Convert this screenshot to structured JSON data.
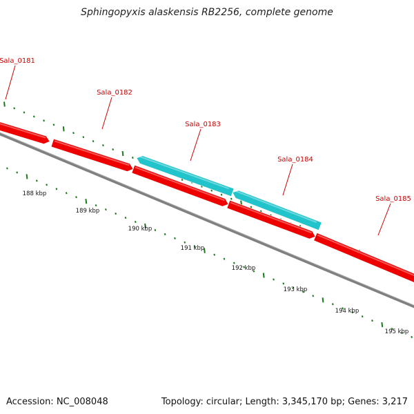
{
  "title": "Sphingopyxis alaskensis RB2256, complete genome",
  "accession": "Accession: NC_008048",
  "summary": "Topology: circular; Length: 3,345,170 bp; Genes: 3,217",
  "colors": {
    "forward_gene": "#ee0000",
    "reverse_gene": "#22c4cc",
    "backbone": "#808080",
    "ticks": "#1a7a1a",
    "gene_label": "#cc0000",
    "kbp_label": "#111111"
  },
  "scale_labels": [
    "188 kbp",
    "189 kbp",
    "190 kbp",
    "191 kbp",
    "192 kbp",
    "193 kbp",
    "194 kbp",
    "195 kbp"
  ],
  "genes": [
    {
      "name": "Sala_0181",
      "strand": "forward"
    },
    {
      "name": "Sala_0182",
      "strand": "forward"
    },
    {
      "name": "Sala_0183",
      "strand": "reverse"
    },
    {
      "name": "Sala_0184",
      "strand": "reverse"
    },
    {
      "name": "Sala_0185",
      "strand": "forward"
    }
  ]
}
